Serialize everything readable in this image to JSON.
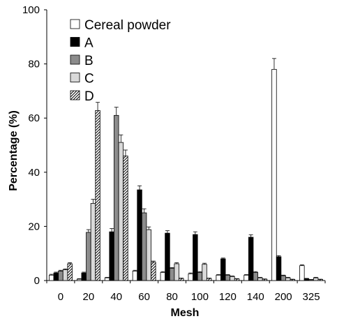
{
  "chart_data": {
    "type": "bar",
    "xlabel": "Mesh",
    "ylabel": "Percentage (%)",
    "ylim": [
      0,
      100
    ],
    "yticks": [
      0,
      20,
      40,
      60,
      80,
      100
    ],
    "categories": [
      "0",
      "20",
      "40",
      "60",
      "80",
      "100",
      "120",
      "140",
      "200",
      "325"
    ],
    "legend_position": "top-left",
    "grid": false,
    "error_bars": true,
    "series": [
      {
        "name": "Cereal powder",
        "pattern": "white",
        "values": [
          2.0,
          0.5,
          1.0,
          3.5,
          3.0,
          2.5,
          2.0,
          2.0,
          78.0,
          5.5
        ],
        "errors": [
          0.3,
          0.2,
          0.2,
          0.3,
          0.3,
          0.3,
          0.2,
          0.2,
          4.0,
          0.3
        ]
      },
      {
        "name": "A",
        "pattern": "black",
        "values": [
          2.8,
          2.8,
          18.0,
          33.5,
          17.5,
          17.0,
          8.0,
          16.0,
          8.8,
          0.7
        ],
        "errors": [
          0.3,
          0.3,
          1.2,
          1.5,
          0.9,
          1.0,
          0.3,
          0.9,
          0.4,
          0.1
        ]
      },
      {
        "name": "B",
        "pattern": "gray",
        "values": [
          3.5,
          17.8,
          61.0,
          25.0,
          4.5,
          3.0,
          2.0,
          3.0,
          1.8,
          0.3
        ],
        "errors": [
          0.3,
          1.0,
          3.0,
          1.5,
          0.3,
          0.3,
          0.2,
          0.3,
          0.2,
          0.1
        ]
      },
      {
        "name": "C",
        "pattern": "light",
        "values": [
          4.0,
          28.5,
          51.0,
          18.8,
          6.2,
          6.0,
          1.5,
          1.0,
          1.0,
          1.0
        ],
        "errors": [
          0.3,
          1.5,
          2.8,
          1.0,
          0.4,
          0.4,
          0.2,
          0.2,
          0.2,
          0.2
        ]
      },
      {
        "name": "D",
        "pattern": "hatch",
        "values": [
          6.2,
          62.8,
          46.0,
          6.8,
          0.8,
          0.8,
          0.6,
          0.5,
          0.4,
          0.4
        ],
        "errors": [
          0.4,
          3.0,
          2.2,
          0.4,
          0.1,
          0.1,
          0.1,
          0.1,
          0.1,
          0.1
        ]
      }
    ]
  }
}
